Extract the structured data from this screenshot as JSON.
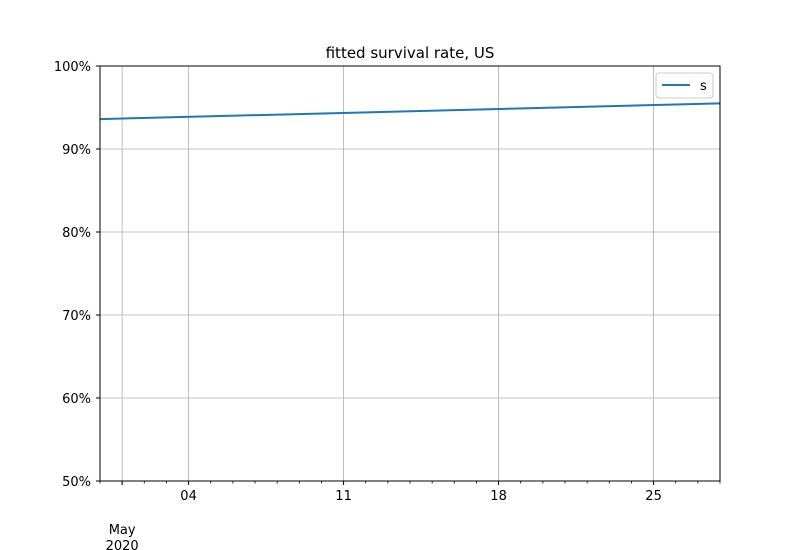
{
  "chart_data": {
    "type": "line",
    "title": "fitted survival rate, US",
    "xlabel": "",
    "ylabel": "",
    "x_range": [
      "2020-04-30",
      "2020-05-28"
    ],
    "ylim": [
      0.5,
      1.0
    ],
    "y_ticks": [
      {
        "value": 0.5,
        "label": "50%"
      },
      {
        "value": 0.6,
        "label": "60%"
      },
      {
        "value": 0.7,
        "label": "70%"
      },
      {
        "value": 0.8,
        "label": "80%"
      },
      {
        "value": 0.9,
        "label": "90%"
      },
      {
        "value": 1.0,
        "label": "100%"
      }
    ],
    "x_major_ticks": [
      {
        "date": "2020-05-01",
        "label": "May",
        "sublabel": "2020"
      },
      {
        "date": "2020-05-04",
        "label": "04"
      },
      {
        "date": "2020-05-11",
        "label": "11"
      },
      {
        "date": "2020-05-18",
        "label": "18"
      },
      {
        "date": "2020-05-25",
        "label": "25"
      }
    ],
    "grid": true,
    "legend_position": "top-right",
    "series": [
      {
        "name": "s",
        "color": "#1f77b4",
        "points": [
          {
            "x": "2020-04-30",
            "y": 0.936
          },
          {
            "x": "2020-05-28",
            "y": 0.955
          }
        ]
      }
    ]
  }
}
